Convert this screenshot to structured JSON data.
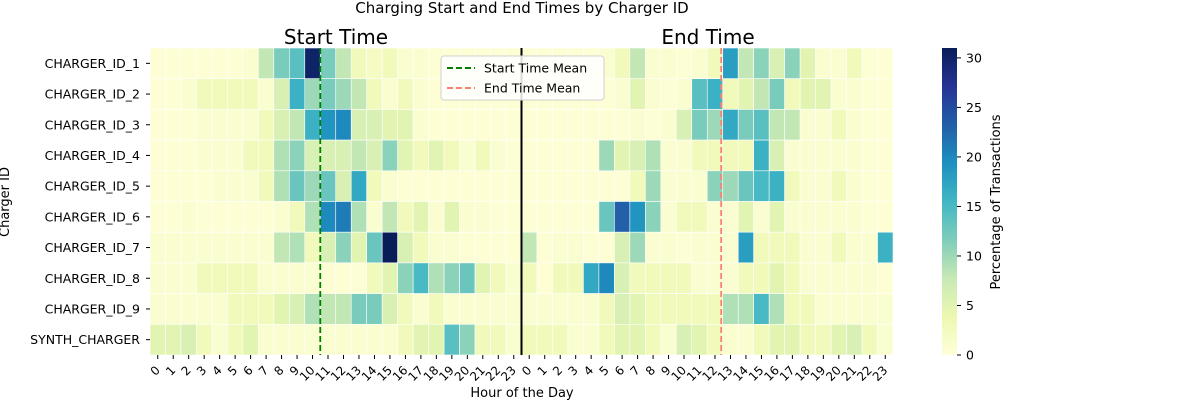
{
  "chart_data": {
    "type": "heatmap",
    "title": "Charging Start and End Times by Charger ID",
    "panel_titles": [
      "Start Time",
      "End Time"
    ],
    "xlabel": "Hour of the Day",
    "ylabel": "Charger ID",
    "colorbar_label": "Percentage of Transactions",
    "colormap": "YlGnBu",
    "value_range": [
      0,
      31
    ],
    "colorbar_ticks": [
      "0",
      "5",
      "10",
      "15",
      "20",
      "25",
      "30"
    ],
    "x_tick_labels": [
      "0",
      "1",
      "2",
      "3",
      "4",
      "5",
      "6",
      "7",
      "8",
      "9",
      "10",
      "11",
      "12",
      "13",
      "14",
      "15",
      "16",
      "17",
      "18",
      "19",
      "20",
      "21",
      "22",
      "23",
      "0",
      "1",
      "2",
      "3",
      "4",
      "5",
      "6",
      "7",
      "8",
      "9",
      "10",
      "11",
      "12",
      "13",
      "14",
      "15",
      "16",
      "17",
      "18",
      "19",
      "20",
      "21",
      "22",
      "23"
    ],
    "chargers": [
      "CHARGER_ID_1",
      "CHARGER_ID_2",
      "CHARGER_ID_3",
      "CHARGER_ID_4",
      "CHARGER_ID_5",
      "CHARGER_ID_6",
      "CHARGER_ID_7",
      "CHARGER_ID_8",
      "CHARGER_ID_9",
      "SYNTH_CHARGER"
    ],
    "start_time": [
      [
        0.5,
        0.5,
        0.5,
        0.5,
        0.5,
        0.5,
        1,
        8,
        12,
        14,
        30,
        12,
        8,
        3,
        2,
        3,
        1,
        1,
        0.5,
        0.5,
        0.5,
        0.5,
        0.5,
        0.5
      ],
      [
        0.5,
        0.5,
        1,
        3,
        3,
        3,
        3,
        1,
        6,
        16,
        10,
        12,
        10,
        8,
        3,
        1,
        3,
        1,
        0.5,
        0.5,
        0.5,
        0.5,
        0.5,
        0.5
      ],
      [
        0.5,
        0.5,
        0.5,
        1,
        1,
        1,
        1,
        3,
        6,
        8,
        16,
        19,
        20,
        6,
        6,
        5,
        5,
        1,
        0.5,
        0.5,
        0.5,
        0.5,
        0.5,
        0.5
      ],
      [
        0.5,
        0.5,
        0.5,
        1,
        1,
        1,
        3,
        3,
        9,
        11,
        6,
        6,
        6,
        8,
        6,
        11,
        5,
        3,
        5,
        3,
        1,
        3,
        1,
        0.5
      ],
      [
        0.5,
        0.5,
        0.5,
        0.5,
        1,
        1,
        1,
        3,
        9,
        13,
        10,
        13,
        6,
        17,
        3,
        1,
        0.5,
        0.5,
        0.5,
        0.5,
        0.5,
        0.5,
        0.5,
        0.5
      ],
      [
        0.5,
        0.5,
        1,
        0.5,
        0.5,
        0.5,
        0.5,
        0.5,
        1,
        3,
        9,
        20,
        21,
        9,
        1,
        8,
        3,
        5,
        1,
        5,
        1,
        1,
        0.5,
        0.5
      ],
      [
        1,
        1,
        1,
        1,
        1,
        1,
        1,
        1,
        8,
        9,
        3,
        6,
        11,
        5,
        13,
        31,
        6,
        3,
        1,
        1,
        0.5,
        0.5,
        0.5,
        0.5
      ],
      [
        1,
        1,
        1,
        3,
        3,
        3,
        3,
        1,
        1,
        1,
        1,
        0.5,
        0.5,
        0.5,
        3,
        5,
        11,
        15,
        9,
        11,
        13,
        5,
        3,
        1
      ],
      [
        1,
        1,
        1,
        1,
        1,
        3,
        3,
        3,
        5,
        6,
        9,
        8,
        8,
        12,
        12,
        6,
        3,
        1,
        3,
        1,
        1,
        1,
        1,
        1
      ],
      [
        5,
        5,
        6,
        3,
        1,
        3,
        5,
        1,
        1,
        1,
        1,
        1,
        1,
        1,
        1,
        1,
        3,
        5,
        5,
        14,
        11,
        3,
        3,
        1
      ]
    ],
    "end_time": [
      [
        0.5,
        0.5,
        0.5,
        0.5,
        0.5,
        1,
        3,
        8,
        1,
        1,
        0.5,
        1,
        3,
        18,
        8,
        11,
        6,
        11,
        5,
        1,
        1,
        3,
        0.5,
        0.5
      ],
      [
        0.5,
        0.5,
        0.5,
        0.5,
        0.5,
        0.5,
        1,
        5,
        1,
        0.5,
        1,
        14,
        16,
        3,
        5,
        8,
        12,
        3,
        5,
        5,
        1,
        1,
        0.5,
        0.5
      ],
      [
        0.5,
        0.5,
        0.5,
        0.5,
        0.5,
        0.5,
        0.5,
        1,
        0.5,
        1,
        6,
        12,
        10,
        17,
        12,
        14,
        8,
        8,
        1,
        1,
        3,
        1,
        0.5,
        0.5
      ],
      [
        0.5,
        0.5,
        0.5,
        0.5,
        0.5,
        10,
        5,
        6,
        9,
        1,
        1,
        3,
        3,
        3,
        3,
        16,
        6,
        1,
        1,
        1,
        1,
        1,
        0.5,
        0.5
      ],
      [
        0.5,
        0.5,
        0.5,
        0.5,
        0.5,
        0.5,
        0.5,
        3,
        10,
        1,
        1,
        1,
        11,
        10,
        13,
        15,
        16,
        3,
        1,
        1,
        3,
        1,
        0.5,
        0.5
      ],
      [
        0.5,
        0.5,
        0.5,
        0.5,
        0.5,
        13,
        23,
        19,
        11,
        1,
        3,
        3,
        1,
        1,
        5,
        1,
        5,
        1,
        1,
        1,
        1,
        1,
        0.5,
        0.5
      ],
      [
        8,
        0.5,
        1,
        1,
        0.5,
        0.5,
        6,
        10,
        1,
        1,
        0.5,
        1,
        1,
        1,
        18,
        3,
        3,
        3,
        1,
        1,
        3,
        1,
        1,
        16
      ],
      [
        3,
        0.5,
        3,
        3,
        17,
        20,
        6,
        3,
        3,
        3,
        3,
        1,
        1,
        1,
        3,
        3,
        5,
        3,
        1,
        1,
        1,
        1,
        1,
        0.5
      ],
      [
        1,
        1,
        1,
        1,
        1,
        3,
        6,
        5,
        3,
        3,
        3,
        3,
        3,
        9,
        9,
        15,
        9,
        3,
        3,
        1,
        1,
        1,
        1,
        1
      ],
      [
        3,
        3,
        3,
        1,
        1,
        3,
        5,
        5,
        3,
        1,
        6,
        5,
        3,
        1,
        1,
        3,
        5,
        5,
        3,
        3,
        5,
        6,
        3,
        1
      ]
    ],
    "start_mean_hour": 10.5,
    "end_mean_hour": 12.4,
    "legend": {
      "position": "upper-center",
      "entries": [
        {
          "label": "Start Time Mean",
          "color": "#008000",
          "style": "dashed"
        },
        {
          "label": "End Time Mean",
          "color": "#fa8072",
          "style": "dashed"
        }
      ]
    },
    "panel_divider_color": "#000000"
  }
}
